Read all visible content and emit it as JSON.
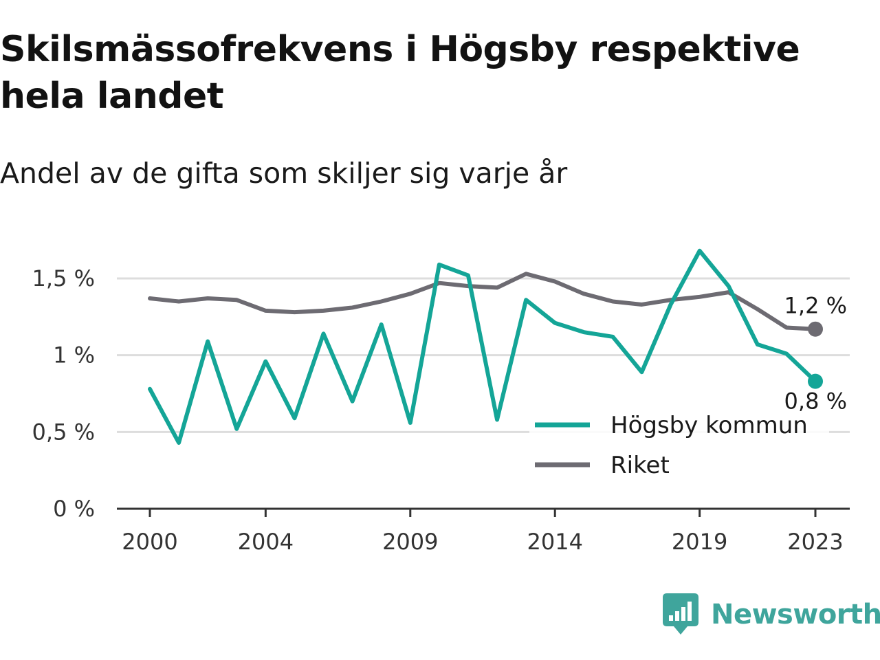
{
  "title": "Skilsmässofrekvens i Högsby respektive hela landet",
  "subtitle": "Andel av de gifta som skiljer sig varje år",
  "brand": {
    "name": "Newsworthy",
    "icon": "newsworthy-logo-icon",
    "color": "#3fa59c"
  },
  "chart_data": {
    "type": "line",
    "title": "Skilsmässofrekvens i Högsby respektive hela landet",
    "subtitle": "Andel av de gifta som skiljer sig varje år",
    "x": [
      2000,
      2001,
      2002,
      2003,
      2004,
      2005,
      2006,
      2007,
      2008,
      2009,
      2010,
      2011,
      2012,
      2013,
      2014,
      2015,
      2016,
      2017,
      2018,
      2019,
      2020,
      2021,
      2022,
      2023
    ],
    "x_tick_labels": [
      "2000",
      "2004",
      "2009",
      "2014",
      "2019",
      "2023"
    ],
    "x_ticks": [
      2000,
      2004,
      2009,
      2014,
      2019,
      2023
    ],
    "y_tick_labels": [
      "0 %",
      "0,5 %",
      "1 %",
      "1,5 %"
    ],
    "y_ticks": [
      0,
      0.5,
      1.0,
      1.5
    ],
    "ylim": [
      0,
      1.7
    ],
    "xlim": [
      2000,
      2023
    ],
    "grid": true,
    "legend_placement": "bottom-right",
    "series": [
      {
        "name": "Högsby kommun",
        "color": "#14a597",
        "values": [
          0.78,
          0.43,
          1.09,
          0.52,
          0.96,
          0.59,
          1.14,
          0.7,
          1.2,
          0.56,
          1.59,
          1.52,
          0.58,
          1.36,
          1.21,
          1.15,
          1.12,
          0.89,
          1.33,
          1.68,
          1.45,
          1.07,
          1.01,
          0.83
        ],
        "end_label": "0,8 %"
      },
      {
        "name": "Riket",
        "color": "#6d6b72",
        "values": [
          1.37,
          1.35,
          1.37,
          1.36,
          1.29,
          1.28,
          1.29,
          1.31,
          1.35,
          1.4,
          1.47,
          1.45,
          1.44,
          1.53,
          1.48,
          1.4,
          1.35,
          1.33,
          1.36,
          1.38,
          1.41,
          1.3,
          1.18,
          1.17
        ],
        "end_label": "1,2 %"
      }
    ]
  }
}
